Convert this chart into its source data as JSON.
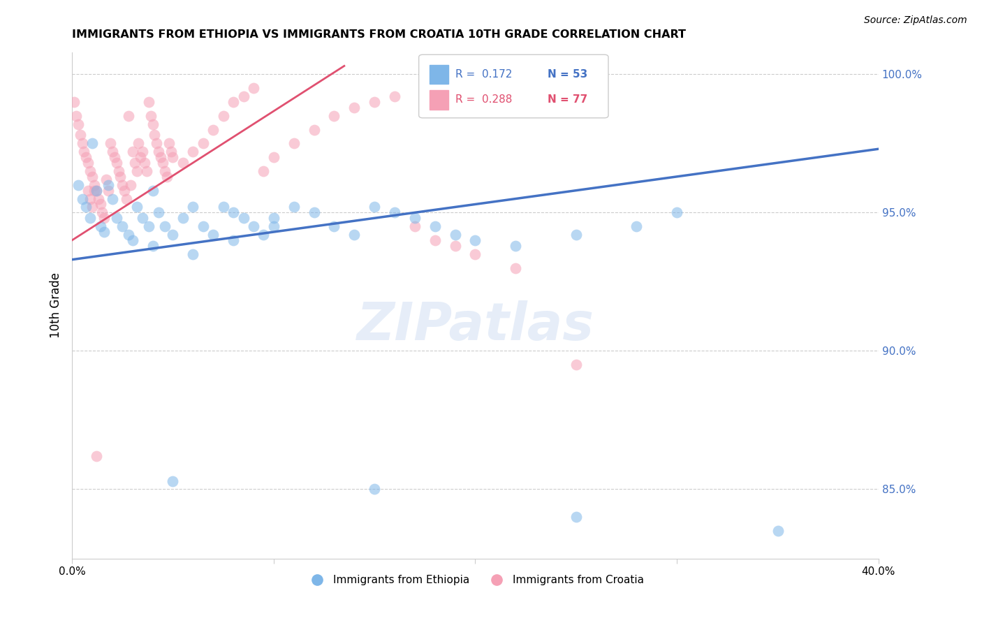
{
  "title": "IMMIGRANTS FROM ETHIOPIA VS IMMIGRANTS FROM CROATIA 10TH GRADE CORRELATION CHART",
  "source": "Source: ZipAtlas.com",
  "ylabel_label": "10th Grade",
  "x_min": 0.0,
  "x_max": 0.4,
  "y_min": 0.825,
  "y_max": 1.008,
  "legend_r1": "R =  0.172",
  "legend_n1": "N = 53",
  "legend_r2": "R =  0.288",
  "legend_n2": "N = 77",
  "color_ethiopia": "#7EB6E8",
  "color_croatia": "#F5A0B5",
  "color_line_ethiopia": "#4472C4",
  "color_line_croatia": "#E05070",
  "watermark": "ZIPatlas",
  "eth_line_x": [
    0.0,
    0.4
  ],
  "eth_line_y": [
    0.933,
    0.973
  ],
  "cro_line_x": [
    0.0,
    0.135
  ],
  "cro_line_y": [
    0.94,
    1.003
  ],
  "ethiopia_x": [
    0.003,
    0.005,
    0.007,
    0.009,
    0.01,
    0.012,
    0.014,
    0.016,
    0.018,
    0.02,
    0.022,
    0.025,
    0.028,
    0.03,
    0.032,
    0.035,
    0.038,
    0.04,
    0.043,
    0.046,
    0.05,
    0.055,
    0.06,
    0.065,
    0.07,
    0.075,
    0.08,
    0.085,
    0.09,
    0.095,
    0.1,
    0.11,
    0.12,
    0.13,
    0.14,
    0.15,
    0.16,
    0.17,
    0.18,
    0.19,
    0.2,
    0.22,
    0.25,
    0.28,
    0.3,
    0.04,
    0.06,
    0.08,
    0.1,
    0.15,
    0.05,
    0.25,
    0.35
  ],
  "ethiopia_y": [
    0.96,
    0.955,
    0.952,
    0.948,
    0.975,
    0.958,
    0.945,
    0.943,
    0.96,
    0.955,
    0.948,
    0.945,
    0.942,
    0.94,
    0.952,
    0.948,
    0.945,
    0.958,
    0.95,
    0.945,
    0.942,
    0.948,
    0.952,
    0.945,
    0.942,
    0.952,
    0.95,
    0.948,
    0.945,
    0.942,
    0.948,
    0.952,
    0.95,
    0.945,
    0.942,
    0.952,
    0.95,
    0.948,
    0.945,
    0.942,
    0.94,
    0.938,
    0.942,
    0.945,
    0.95,
    0.938,
    0.935,
    0.94,
    0.945,
    0.85,
    0.853,
    0.84,
    0.835
  ],
  "croatia_x": [
    0.001,
    0.002,
    0.003,
    0.004,
    0.005,
    0.006,
    0.007,
    0.008,
    0.009,
    0.01,
    0.011,
    0.012,
    0.013,
    0.014,
    0.015,
    0.016,
    0.017,
    0.018,
    0.019,
    0.02,
    0.021,
    0.022,
    0.023,
    0.024,
    0.025,
    0.026,
    0.027,
    0.028,
    0.029,
    0.03,
    0.031,
    0.032,
    0.033,
    0.034,
    0.035,
    0.036,
    0.037,
    0.038,
    0.039,
    0.04,
    0.041,
    0.042,
    0.043,
    0.044,
    0.045,
    0.046,
    0.047,
    0.048,
    0.049,
    0.05,
    0.055,
    0.06,
    0.065,
    0.07,
    0.075,
    0.08,
    0.085,
    0.09,
    0.095,
    0.1,
    0.11,
    0.12,
    0.13,
    0.14,
    0.15,
    0.16,
    0.17,
    0.18,
    0.19,
    0.2,
    0.22,
    0.25,
    0.008,
    0.009,
    0.01,
    0.011,
    0.012
  ],
  "croatia_y": [
    0.99,
    0.985,
    0.982,
    0.978,
    0.975,
    0.972,
    0.97,
    0.968,
    0.965,
    0.963,
    0.96,
    0.958,
    0.955,
    0.953,
    0.95,
    0.948,
    0.962,
    0.958,
    0.975,
    0.972,
    0.97,
    0.968,
    0.965,
    0.963,
    0.96,
    0.958,
    0.955,
    0.985,
    0.96,
    0.972,
    0.968,
    0.965,
    0.975,
    0.97,
    0.972,
    0.968,
    0.965,
    0.99,
    0.985,
    0.982,
    0.978,
    0.975,
    0.972,
    0.97,
    0.968,
    0.965,
    0.963,
    0.975,
    0.972,
    0.97,
    0.968,
    0.972,
    0.975,
    0.98,
    0.985,
    0.99,
    0.992,
    0.995,
    0.965,
    0.97,
    0.975,
    0.98,
    0.985,
    0.988,
    0.99,
    0.992,
    0.945,
    0.94,
    0.938,
    0.935,
    0.93,
    0.895,
    0.958,
    0.955,
    0.952,
    0.958,
    0.862
  ]
}
